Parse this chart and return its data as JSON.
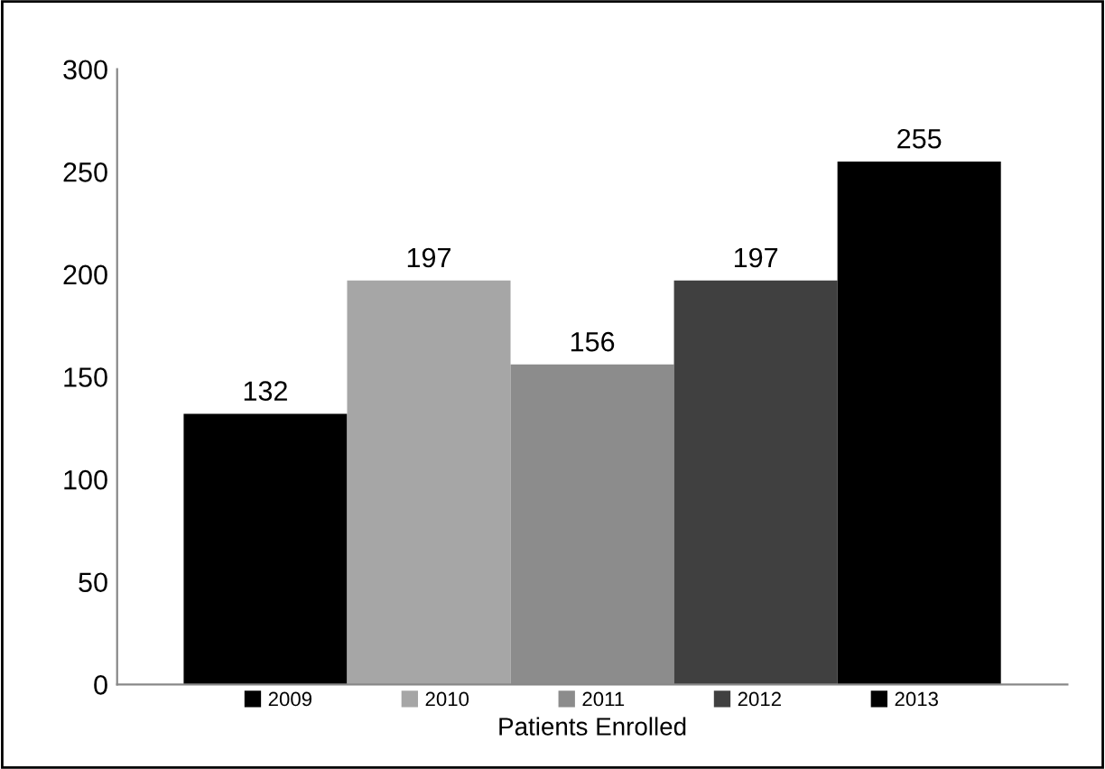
{
  "chart_data": {
    "type": "bar",
    "categories": [
      "Patients Enrolled"
    ],
    "series": [
      {
        "name": "2009",
        "color": "#000000",
        "values": [
          132
        ]
      },
      {
        "name": "2010",
        "color": "#a6a6a6",
        "values": [
          197
        ]
      },
      {
        "name": "2011",
        "color": "#8c8c8c",
        "values": [
          156
        ]
      },
      {
        "name": "2012",
        "color": "#404040",
        "values": [
          197
        ]
      },
      {
        "name": "2013",
        "color": "#000000",
        "values": [
          255
        ]
      }
    ],
    "ylim": [
      0,
      300
    ],
    "yticks": [
      0,
      50,
      100,
      150,
      200,
      250,
      300
    ],
    "grid": false,
    "legend": "bottom",
    "data_labels": true
  }
}
